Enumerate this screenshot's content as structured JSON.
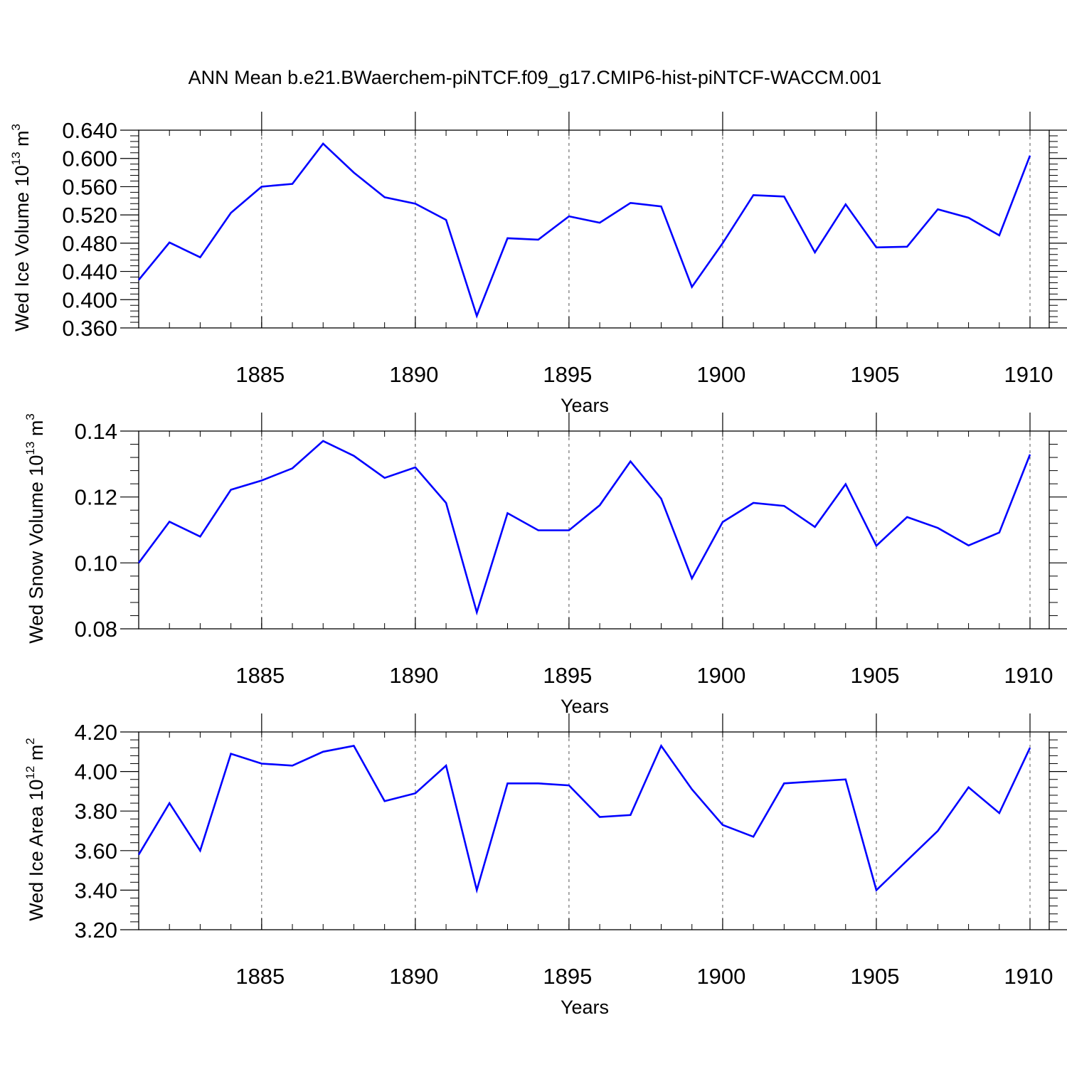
{
  "title": "ANN Mean b.e21.BWaerchem-piNTCF.f09_g17.CMIP6-hist-piNTCF-WACCM.001",
  "colors": {
    "line": "#0000ff",
    "axis": "#000000",
    "grid": "#555555"
  },
  "chart_data": [
    {
      "type": "line",
      "ylabel": {
        "text": "Wed Ice Volume 10",
        "exponent": "13",
        "unit": " m",
        "unit_exponent": "3"
      },
      "xlabel": "Years",
      "xlim": [
        1881,
        1910
      ],
      "ylim": [
        0.36,
        0.64
      ],
      "xticks": [
        "1885",
        "1890",
        "1895",
        "1900",
        "1905",
        "1910"
      ],
      "yticks": [
        "0.360",
        "0.400",
        "0.440",
        "0.480",
        "0.520",
        "0.560",
        "0.600",
        "0.640"
      ],
      "grid": "vertical dashed at labeled years",
      "x": [
        1881,
        1882,
        1883,
        1884,
        1885,
        1886,
        1887,
        1888,
        1889,
        1890,
        1891,
        1892,
        1893,
        1894,
        1895,
        1896,
        1897,
        1898,
        1899,
        1900,
        1901,
        1902,
        1903,
        1904,
        1905,
        1906,
        1907,
        1908,
        1909,
        1910
      ],
      "values": [
        0.428,
        0.481,
        0.46,
        0.523,
        0.56,
        0.564,
        0.621,
        0.58,
        0.545,
        0.536,
        0.513,
        0.377,
        0.487,
        0.485,
        0.518,
        0.509,
        0.537,
        0.532,
        0.418,
        0.48,
        0.548,
        0.546,
        0.467,
        0.535,
        0.474,
        0.475,
        0.528,
        0.516,
        0.491,
        0.604
      ]
    },
    {
      "type": "line",
      "ylabel": {
        "text": "Wed Snow Volume 10",
        "exponent": "13",
        "unit": " m",
        "unit_exponent": "3"
      },
      "xlabel": "Years",
      "xlim": [
        1881,
        1910
      ],
      "ylim": [
        0.08,
        0.14
      ],
      "xticks": [
        "1885",
        "1890",
        "1895",
        "1900",
        "1905",
        "1910"
      ],
      "yticks": [
        "0.08",
        "0.10",
        "0.12",
        "0.14"
      ],
      "grid": "vertical dashed at labeled years",
      "x": [
        1881,
        1882,
        1883,
        1884,
        1885,
        1886,
        1887,
        1888,
        1889,
        1890,
        1891,
        1892,
        1893,
        1894,
        1895,
        1896,
        1897,
        1898,
        1899,
        1900,
        1901,
        1902,
        1903,
        1904,
        1905,
        1906,
        1907,
        1908,
        1909,
        1910
      ],
      "values": [
        0.1,
        0.1125,
        0.108,
        0.1222,
        0.125,
        0.1287,
        0.137,
        0.1325,
        0.1258,
        0.129,
        0.1182,
        0.085,
        0.1151,
        0.1099,
        0.1099,
        0.1175,
        0.1308,
        0.1195,
        0.0953,
        0.1124,
        0.1182,
        0.1173,
        0.1109,
        0.1239,
        0.1052,
        0.1139,
        0.1106,
        0.1053,
        0.1092,
        0.1329
      ]
    },
    {
      "type": "line",
      "ylabel": {
        "text": "Wed Ice Area 10",
        "exponent": "12",
        "unit": " m",
        "unit_exponent": "2"
      },
      "xlabel": "Years",
      "xlim": [
        1881,
        1910
      ],
      "ylim": [
        3.2,
        4.2
      ],
      "xticks": [
        "1885",
        "1890",
        "1895",
        "1900",
        "1905",
        "1910"
      ],
      "yticks": [
        "3.20",
        "3.40",
        "3.60",
        "3.80",
        "4.00",
        "4.20"
      ],
      "grid": "vertical dashed at labeled years",
      "x": [
        1881,
        1882,
        1883,
        1884,
        1885,
        1886,
        1887,
        1888,
        1889,
        1890,
        1891,
        1892,
        1893,
        1894,
        1895,
        1896,
        1897,
        1898,
        1899,
        1900,
        1901,
        1902,
        1903,
        1904,
        1905,
        1906,
        1907,
        1908,
        1909,
        1910
      ],
      "values": [
        3.58,
        3.84,
        3.6,
        4.09,
        4.04,
        4.03,
        4.1,
        4.13,
        3.85,
        3.89,
        4.03,
        3.4,
        3.94,
        3.94,
        3.93,
        3.77,
        3.78,
        4.13,
        3.91,
        3.73,
        3.67,
        3.94,
        3.95,
        3.96,
        3.4,
        3.55,
        3.7,
        3.92,
        3.79,
        4.12
      ]
    }
  ]
}
